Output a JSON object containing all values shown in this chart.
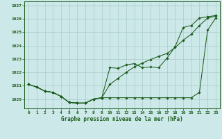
{
  "bg_color": "#cce8e8",
  "grid_color": "#aacaca",
  "line_color": "#1a5c1a",
  "xlabel": "Graphe pression niveau de la mer (hPa)",
  "ylim": [
    1019.3,
    1027.3
  ],
  "xlim": [
    -0.5,
    23.5
  ],
  "yticks": [
    1020,
    1021,
    1022,
    1023,
    1024,
    1025,
    1026,
    1027
  ],
  "xticks": [
    0,
    1,
    2,
    3,
    4,
    5,
    6,
    7,
    8,
    9,
    10,
    11,
    12,
    13,
    14,
    15,
    16,
    17,
    18,
    19,
    20,
    21,
    22,
    23
  ],
  "line1_y": [
    1021.1,
    1020.9,
    1020.6,
    1020.5,
    1020.2,
    1019.75,
    1019.7,
    1019.7,
    1020.0,
    1020.1,
    1020.1,
    1020.1,
    1020.1,
    1020.1,
    1020.1,
    1020.1,
    1020.1,
    1020.1,
    1020.1,
    1020.1,
    1020.1,
    1020.5,
    1025.15,
    1026.05
  ],
  "line2_y": [
    1021.1,
    1020.9,
    1020.6,
    1020.5,
    1020.2,
    1019.75,
    1019.7,
    1019.7,
    1020.0,
    1020.1,
    1022.35,
    1022.3,
    1022.55,
    1022.65,
    1022.35,
    1022.4,
    1022.35,
    1023.05,
    1023.9,
    1025.35,
    1025.5,
    1026.05,
    1026.15,
    1026.25
  ],
  "line3_y": [
    1021.1,
    1020.9,
    1020.6,
    1020.5,
    1020.2,
    1019.75,
    1019.7,
    1019.7,
    1020.0,
    1020.1,
    1021.1,
    1021.55,
    1022.0,
    1022.4,
    1022.7,
    1022.95,
    1023.2,
    1023.4,
    1023.85,
    1024.4,
    1024.85,
    1025.5,
    1026.05,
    1026.2
  ]
}
